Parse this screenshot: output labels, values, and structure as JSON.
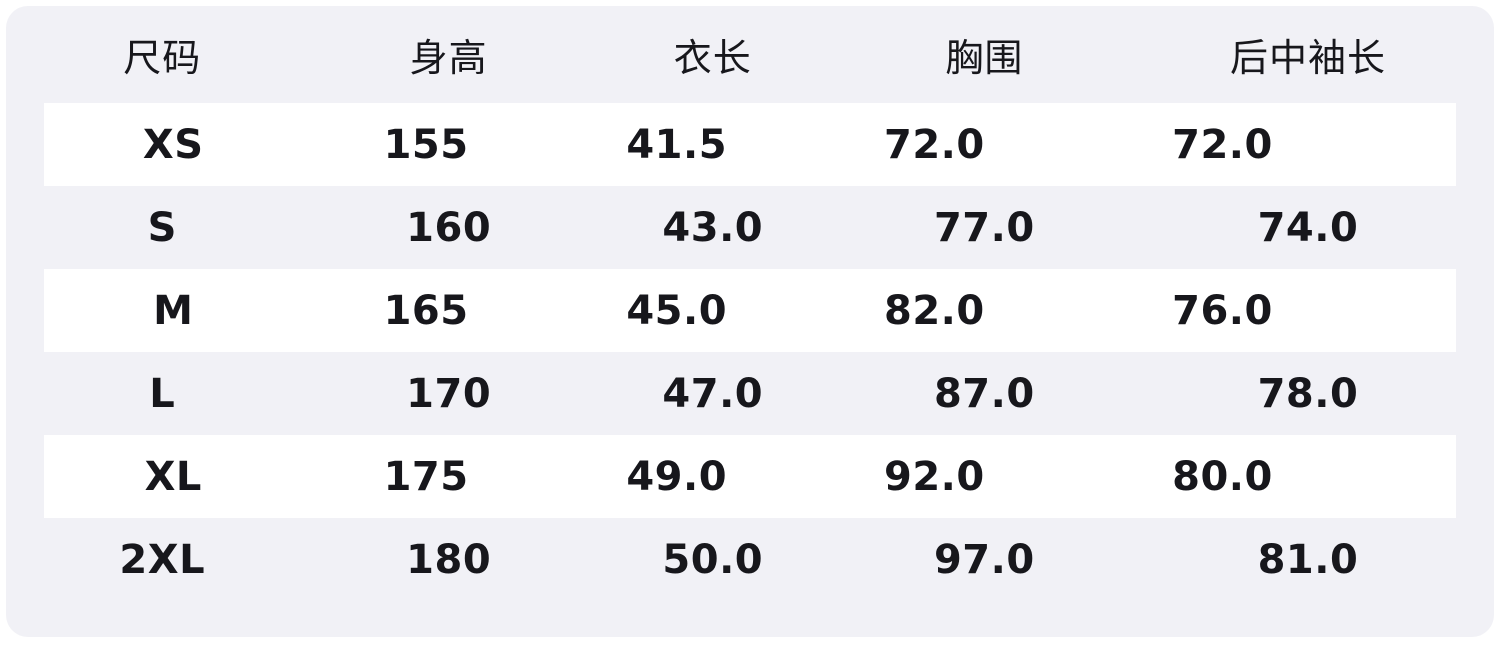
{
  "colors": {
    "page_background": "#ffffff",
    "panel_background": "#f1f1f6",
    "row_highlight": "#ffffff",
    "text": "#17171c"
  },
  "chart_data": {
    "type": "table",
    "title": "",
    "columns": [
      "尺码",
      "身高",
      "衣长",
      "胸围",
      "后中袖长"
    ],
    "column_keys": [
      "size",
      "height",
      "garment-length",
      "chest",
      "back-center-sleeve-length"
    ],
    "rows": [
      [
        "XS",
        "155",
        "41.5",
        "72.0",
        "72.0"
      ],
      [
        "S",
        "160",
        "43.0",
        "77.0",
        "74.0"
      ],
      [
        "M",
        "165",
        "45.0",
        "82.0",
        "76.0"
      ],
      [
        "L",
        "170",
        "47.0",
        "87.0",
        "78.0"
      ],
      [
        "XL",
        "175",
        "49.0",
        "92.0",
        "80.0"
      ],
      [
        "2XL",
        "180",
        "50.0",
        "97.0",
        "81.0"
      ]
    ],
    "striped_row_indices": [
      0,
      2,
      4
    ],
    "layout": {
      "stripe_style": "alternating white bands on lavender panel, starting with first data row",
      "grid": "off",
      "header_position": "top"
    }
  }
}
